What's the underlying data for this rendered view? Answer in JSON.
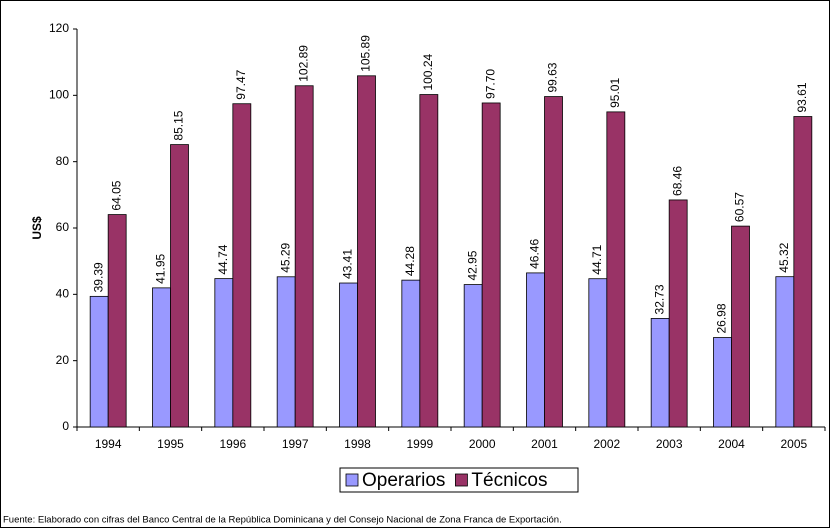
{
  "chart_data": {
    "type": "bar",
    "y_label": "US$",
    "source": "Fuente: Elaborado con cifras del Banco Central de la República Dominicana y del Consejo Nacional de Zona Franca de Exportación.",
    "categories": [
      "1994",
      "1995",
      "1996",
      "1997",
      "1998",
      "1999",
      "2000",
      "2001",
      "2002",
      "2003",
      "2004",
      "2005"
    ],
    "series": [
      {
        "name": "Operarios",
        "color": "#9999ff",
        "values": [
          39.39,
          41.95,
          44.74,
          45.29,
          43.41,
          44.28,
          42.95,
          46.46,
          44.71,
          32.73,
          26.98,
          45.32
        ],
        "value_labels": [
          "39.39",
          "41.95",
          "44.74",
          "45.29",
          "43.41",
          "44.28",
          "42.95",
          "46.46",
          "44.71",
          "32.73",
          "26.98",
          "45.32"
        ]
      },
      {
        "name": "Técnicos",
        "color": "#993366",
        "values": [
          64.05,
          85.15,
          97.47,
          102.89,
          105.89,
          100.24,
          97.7,
          99.63,
          95.01,
          68.46,
          60.57,
          93.61
        ],
        "value_labels": [
          "64.05",
          "85.15",
          "97.47",
          "102.89",
          "105.89",
          "100.24",
          "97.70",
          "99.63",
          "95.01",
          "68.46",
          "60.57",
          "93.61"
        ]
      }
    ],
    "ylim": [
      0,
      120
    ],
    "yticks": [
      0,
      20,
      40,
      60,
      80,
      100,
      120
    ],
    "grid": false,
    "legend": "bottom"
  }
}
